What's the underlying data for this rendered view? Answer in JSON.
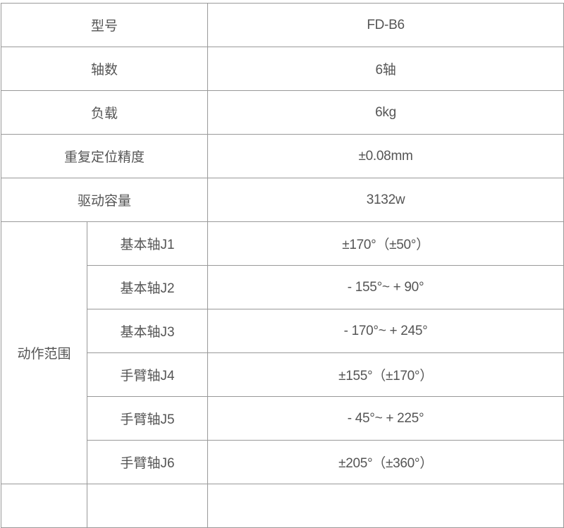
{
  "specs": [
    {
      "label": "型号",
      "value": "FD-B6"
    },
    {
      "label": "轴数",
      "value": "6轴"
    },
    {
      "label": "负载",
      "value": "6kg"
    },
    {
      "label": "重复定位精度",
      "value": "±0.08mm"
    },
    {
      "label": "驱动容量",
      "value": "3132w"
    }
  ],
  "motion_range": {
    "label": "动作范围",
    "axes": [
      {
        "label": "基本轴J1",
        "value": "±170°（±50°）"
      },
      {
        "label": "基本轴J2",
        "value": "- 155°~ + 90°"
      },
      {
        "label": "基本轴J3",
        "value": "- 170°~ + 245°"
      },
      {
        "label": "手臂轴J4",
        "value": "±155°（±170°）"
      },
      {
        "label": "手臂轴J5",
        "value": "- 45°~ + 225°"
      },
      {
        "label": "手臂轴J6",
        "value": "±205°（±360°）"
      }
    ]
  }
}
